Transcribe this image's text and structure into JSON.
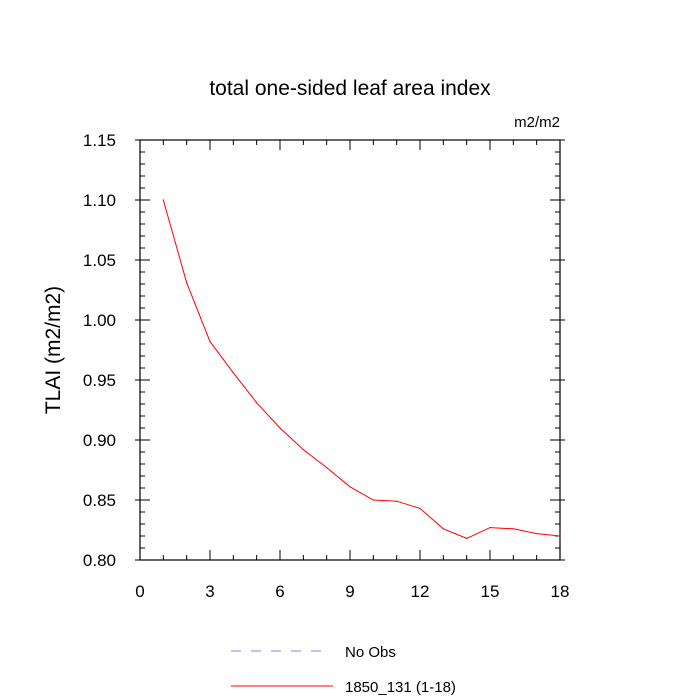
{
  "chart_data": {
    "type": "line",
    "title": "total one-sided leaf area index",
    "units_label": "m2/m2",
    "ylabel": "TLAI  (m2/m2)",
    "xlabel": "",
    "xlim": [
      0,
      18
    ],
    "ylim": [
      0.8,
      1.15
    ],
    "x_ticks": [
      0,
      3,
      6,
      9,
      12,
      15,
      18
    ],
    "y_ticks": [
      0.8,
      0.85,
      0.9,
      0.95,
      1.0,
      1.05,
      1.1,
      1.15
    ],
    "x_tick_labels": [
      "0",
      "3",
      "6",
      "9",
      "12",
      "15",
      "18"
    ],
    "y_tick_labels": [
      "0.80",
      "0.85",
      "0.90",
      "0.95",
      "1.00",
      "1.05",
      "1.10",
      "1.15"
    ],
    "legend_position": "bottom",
    "series": [
      {
        "name": "1850_131 (1-18)",
        "color": "#ff0000",
        "style": "solid",
        "x": [
          1,
          2,
          3,
          4,
          5,
          6,
          7,
          8,
          9,
          10,
          11,
          12,
          13,
          14,
          15,
          16,
          17,
          18
        ],
        "y": [
          1.1,
          1.031,
          0.982,
          0.956,
          0.931,
          0.91,
          0.892,
          0.877,
          0.861,
          0.85,
          0.849,
          0.843,
          0.826,
          0.818,
          0.827,
          0.826,
          0.822,
          0.82
        ]
      }
    ],
    "legend": [
      {
        "label": "No Obs",
        "color": "#8080ff",
        "style": "dashed"
      },
      {
        "label": "1850_131 (1-18)",
        "color": "#ff0000",
        "style": "solid"
      }
    ]
  }
}
